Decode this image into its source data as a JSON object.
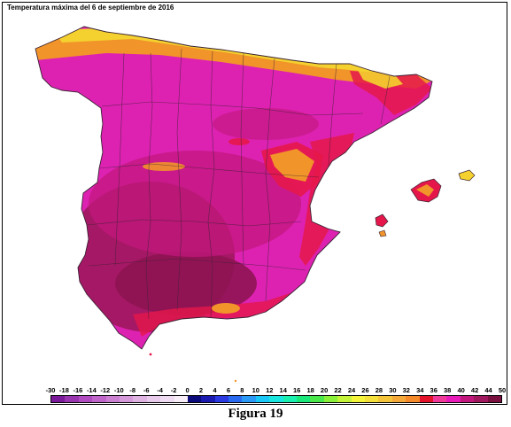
{
  "map": {
    "title": "Temperatura máxima del 6 de septiembre de 2016",
    "colors": {
      "hot_core": "#a0185e",
      "very_hot": "#c2177c",
      "hot": "#dd22b2",
      "warm_red": "#e5174a",
      "warm_orange": "#f1942a",
      "warm_yellow": "#f4d12e",
      "sea": "#ffffff",
      "border": "#3a2233"
    }
  },
  "legend": {
    "labels": [
      "-30",
      "-18",
      "-16",
      "-14",
      "-12",
      "-10",
      "-8",
      "-6",
      "-4",
      "-2",
      "0",
      "2",
      "4",
      "6",
      "8",
      "10",
      "12",
      "14",
      "16",
      "18",
      "20",
      "22",
      "24",
      "26",
      "28",
      "30",
      "32",
      "34",
      "36",
      "38",
      "40",
      "42",
      "44",
      "50"
    ],
    "colors": [
      "#7a1a9a",
      "#9a35b0",
      "#b04cc0",
      "#c065c9",
      "#cc80d2",
      "#d69adb",
      "#dfb3e2",
      "#e8caea",
      "#f0dcf2",
      "#f8eef8",
      "#0a0a7a",
      "#1a1ab0",
      "#2a3ae0",
      "#2a6af0",
      "#2a9af6",
      "#1ac8f8",
      "#1ae6e0",
      "#1af0b0",
      "#1ae87a",
      "#4ae84a",
      "#8af03a",
      "#c4f43a",
      "#f4f43a",
      "#f4e03a",
      "#f4c43a",
      "#f4a83a",
      "#f48a2a",
      "#e4122a",
      "#f03a9a",
      "#e81ab8",
      "#c2177c",
      "#a0185e",
      "#7a1040"
    ]
  },
  "caption": "Figura 19"
}
